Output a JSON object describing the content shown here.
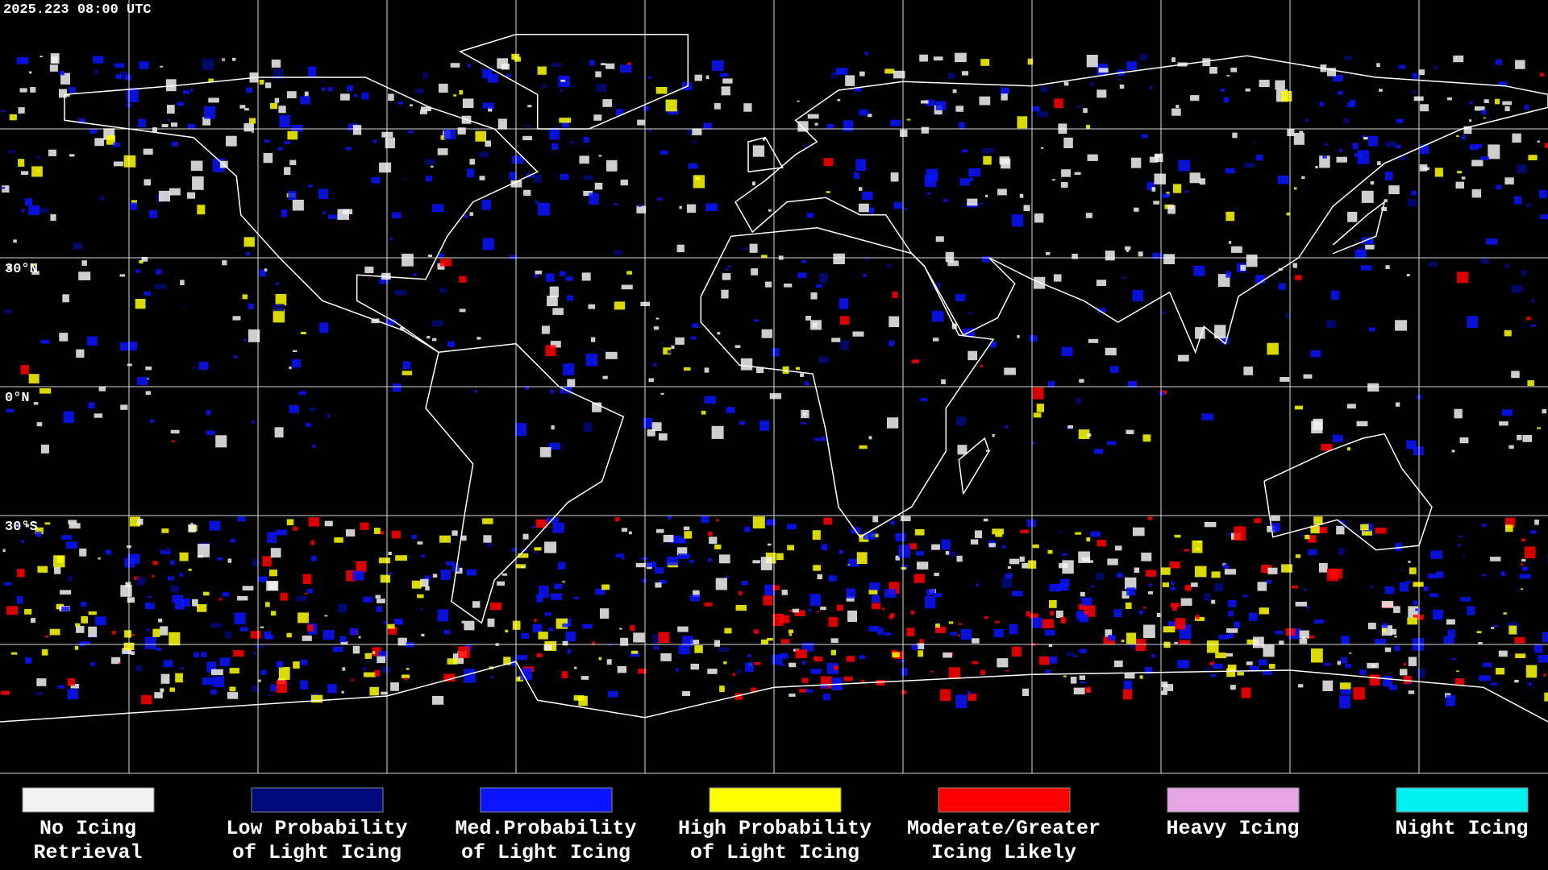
{
  "header": {
    "timestamp": "2025.223 08:00 UTC"
  },
  "map": {
    "latitude_labels": [
      {
        "label": "30°N",
        "lat": 30
      },
      {
        "label": "0°N",
        "lat": 0
      },
      {
        "label": "30°S",
        "lat": -30
      }
    ]
  },
  "legend": [
    {
      "lines": [
        "No Icing",
        "Retrieval"
      ],
      "color": "#f2f2f2"
    },
    {
      "lines": [
        "Low Probability",
        "of Light Icing"
      ],
      "color": "#000a7a"
    },
    {
      "lines": [
        "Med.Probability",
        "of Light Icing"
      ],
      "color": "#0a14ff"
    },
    {
      "lines": [
        "High Probability",
        "of Light Icing"
      ],
      "color": "#ffff00"
    },
    {
      "lines": [
        "Moderate/Greater",
        "Icing Likely"
      ],
      "color": "#ff0000"
    },
    {
      "lines": [
        "Heavy Icing",
        ""
      ],
      "color": "#e6a6e6"
    },
    {
      "lines": [
        "Night Icing",
        ""
      ],
      "color": "#00f0f0"
    }
  ]
}
